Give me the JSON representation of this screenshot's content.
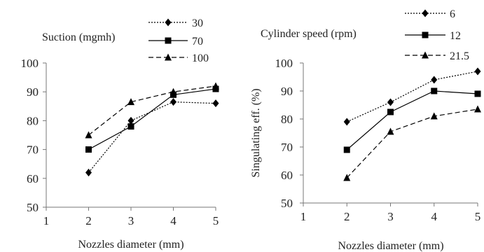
{
  "chart_data": [
    {
      "type": "line",
      "title": "",
      "xlabel": "Nozzles diameter (mm)",
      "ylabel": "",
      "legend_title": "Suction (mgmh)",
      "legend_position": "top-right",
      "grid": false,
      "xlim": [
        1,
        5
      ],
      "ylim": [
        50,
        100
      ],
      "xticks": [
        "1",
        "2",
        "3",
        "4",
        "5"
      ],
      "yticks": [
        "50",
        "60",
        "70",
        "80",
        "90",
        "100"
      ],
      "x": [
        2,
        3,
        4,
        5
      ],
      "series": [
        {
          "name": "30",
          "values": [
            62,
            80,
            86.5,
            86
          ],
          "style": "dotted",
          "marker": "diamond"
        },
        {
          "name": "70",
          "values": [
            70,
            78,
            89,
            91
          ],
          "style": "solid",
          "marker": "square"
        },
        {
          "name": "100",
          "values": [
            75,
            86.5,
            90,
            92
          ],
          "style": "dashed",
          "marker": "triangle"
        }
      ]
    },
    {
      "type": "line",
      "title": "",
      "xlabel": "Nozzles diameter (mm)",
      "ylabel": "Singulating eff. (%)",
      "legend_title": "Cylinder speed (rpm)",
      "legend_position": "top-right",
      "grid": false,
      "xlim": [
        1,
        5
      ],
      "ylim": [
        50,
        100
      ],
      "xticks": [
        "1",
        "2",
        "3",
        "4",
        "5"
      ],
      "yticks": [
        "50",
        "60",
        "70",
        "80",
        "90",
        "100"
      ],
      "x": [
        2,
        3,
        4,
        5
      ],
      "series": [
        {
          "name": "6",
          "values": [
            79,
            86,
            94,
            97
          ],
          "style": "dotted",
          "marker": "diamond"
        },
        {
          "name": "12",
          "values": [
            69,
            82.5,
            90,
            89
          ],
          "style": "solid",
          "marker": "square"
        },
        {
          "name": "21.5",
          "values": [
            59,
            75.5,
            81,
            83.5
          ],
          "style": "dashed",
          "marker": "triangle"
        }
      ]
    }
  ]
}
